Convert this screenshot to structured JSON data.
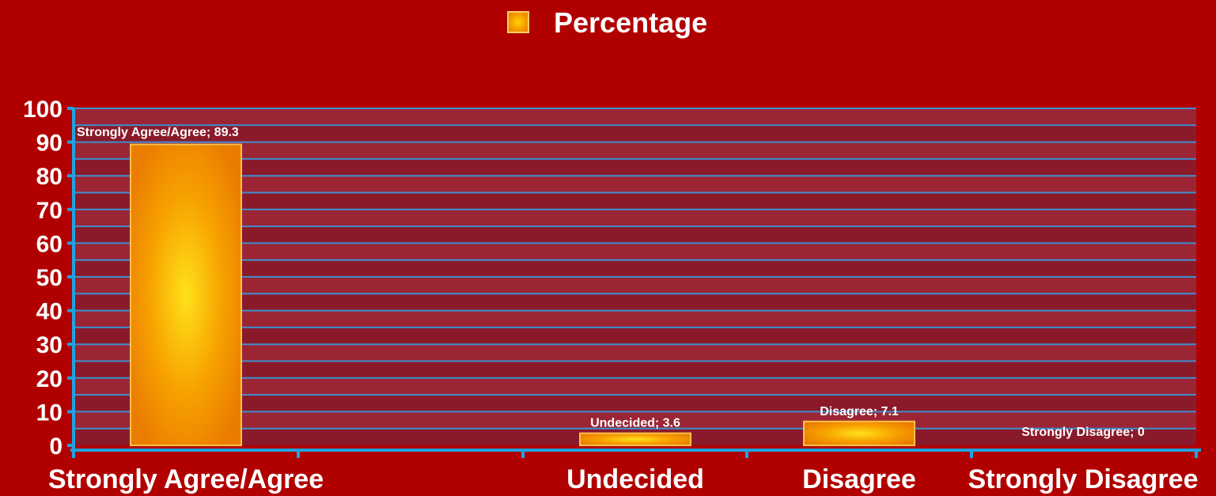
{
  "chart_data": {
    "type": "bar",
    "categories": [
      "Strongly Agree/Agree",
      "Undecided",
      "Disagree",
      "Strongly Disagree"
    ],
    "series": [
      {
        "name": "Percentage",
        "values": [
          89.3,
          3.6,
          7.1,
          0
        ]
      }
    ],
    "data_labels": [
      "Strongly Agree/Agree; 89.3",
      "Undecided; 3.6",
      "Disagree; 7.1",
      "Strongly Disagree; 0"
    ],
    "y_ticks": [
      "0",
      "10",
      "20",
      "30",
      "40",
      "50",
      "60",
      "70",
      "80",
      "90",
      "100"
    ],
    "ylim": [
      0,
      100
    ],
    "grid": true,
    "legend_position": "top-center",
    "colors": {
      "background": "#b10000",
      "plot_band_dark": "#8a1a2a",
      "plot_band_light": "#9b2535",
      "gridline": "#3d8fd0",
      "axis": "#1fa3e0",
      "bar_center": "#ffd400",
      "bar_edge": "#ea7c00",
      "text": "#ffffff"
    }
  }
}
